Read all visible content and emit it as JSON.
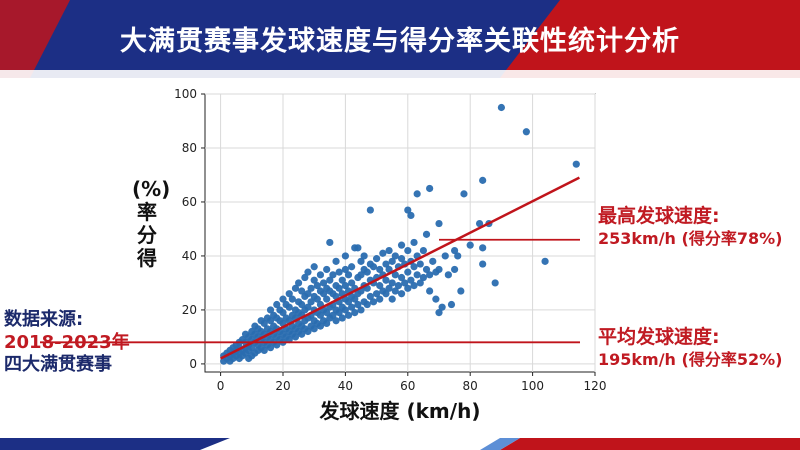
{
  "title": "大满贯赛事发球速度与得分率关联性统计分析",
  "annotations": {
    "max_label": "最高发球速度:",
    "max_value": "253km/h (得分率78%)",
    "avg_label": "平均发球速度:",
    "avg_value": "195km/h (得分率52%)",
    "source_label": "数据来源:",
    "source_years": "2018-2023年",
    "source_events": "四大满贯赛事"
  },
  "colors": {
    "banner_red": "#c0141b",
    "banner_navy": "#1c2f85",
    "point_blue": "#2a6db0",
    "line_red": "#c0141b",
    "text_red": "#c01a22",
    "text_navy": "#1c2a6b"
  },
  "chart_data": {
    "type": "scatter",
    "xlabel": "发球速度 (km/h)",
    "ylabel_chars": [
      "(%)",
      "率",
      "分",
      "得"
    ],
    "xlim": [
      -5,
      120
    ],
    "ylim": [
      -3,
      100
    ],
    "xticks": [
      0,
      20,
      40,
      60,
      80,
      100,
      120
    ],
    "yticks": [
      0,
      20,
      40,
      60,
      80,
      100
    ],
    "grid": true,
    "trend_line": {
      "x": [
        0,
        115
      ],
      "y": [
        2,
        69
      ]
    },
    "reference_lines": [
      {
        "y": 46,
        "x_from": 70,
        "x_to": 118
      },
      {
        "y": 8,
        "x_from": -5,
        "x_to": 118
      }
    ],
    "points": [
      [
        1,
        1
      ],
      [
        1,
        3
      ],
      [
        2,
        2
      ],
      [
        2,
        4
      ],
      [
        3,
        1
      ],
      [
        3,
        3
      ],
      [
        3,
        5
      ],
      [
        4,
        2
      ],
      [
        4,
        4
      ],
      [
        4,
        6
      ],
      [
        5,
        3
      ],
      [
        5,
        5
      ],
      [
        5,
        7
      ],
      [
        6,
        2
      ],
      [
        6,
        4
      ],
      [
        6,
        6
      ],
      [
        6,
        8
      ],
      [
        7,
        3
      ],
      [
        7,
        5
      ],
      [
        7,
        9
      ],
      [
        8,
        4
      ],
      [
        8,
        6
      ],
      [
        8,
        8
      ],
      [
        8,
        11
      ],
      [
        9,
        2
      ],
      [
        9,
        5
      ],
      [
        9,
        7
      ],
      [
        9,
        10
      ],
      [
        10,
        3
      ],
      [
        10,
        6
      ],
      [
        10,
        9
      ],
      [
        10,
        12
      ],
      [
        11,
        4
      ],
      [
        11,
        8
      ],
      [
        11,
        11
      ],
      [
        11,
        14
      ],
      [
        12,
        5
      ],
      [
        12,
        7
      ],
      [
        12,
        10
      ],
      [
        12,
        13
      ],
      [
        13,
        6
      ],
      [
        13,
        9
      ],
      [
        13,
        12
      ],
      [
        13,
        16
      ],
      [
        14,
        5
      ],
      [
        14,
        8
      ],
      [
        14,
        11
      ],
      [
        14,
        15
      ],
      [
        15,
        7
      ],
      [
        15,
        10
      ],
      [
        15,
        13
      ],
      [
        15,
        17
      ],
      [
        16,
        6
      ],
      [
        16,
        9
      ],
      [
        16,
        12
      ],
      [
        16,
        16
      ],
      [
        16,
        20
      ],
      [
        17,
        8
      ],
      [
        17,
        11
      ],
      [
        17,
        14
      ],
      [
        17,
        18
      ],
      [
        18,
        7
      ],
      [
        18,
        10
      ],
      [
        18,
        13
      ],
      [
        18,
        17
      ],
      [
        18,
        22
      ],
      [
        19,
        9
      ],
      [
        19,
        12
      ],
      [
        19,
        16
      ],
      [
        19,
        20
      ],
      [
        20,
        8
      ],
      [
        20,
        11
      ],
      [
        20,
        15
      ],
      [
        20,
        19
      ],
      [
        20,
        24
      ],
      [
        21,
        10
      ],
      [
        21,
        13
      ],
      [
        21,
        17
      ],
      [
        21,
        22
      ],
      [
        22,
        9
      ],
      [
        22,
        12
      ],
      [
        22,
        16
      ],
      [
        22,
        21
      ],
      [
        22,
        26
      ],
      [
        23,
        11
      ],
      [
        23,
        14
      ],
      [
        23,
        18
      ],
      [
        23,
        24
      ],
      [
        24,
        10
      ],
      [
        24,
        13
      ],
      [
        24,
        17
      ],
      [
        24,
        20
      ],
      [
        24,
        28
      ],
      [
        25,
        12
      ],
      [
        25,
        15
      ],
      [
        25,
        19
      ],
      [
        25,
        23
      ],
      [
        25,
        30
      ],
      [
        26,
        11
      ],
      [
        26,
        14
      ],
      [
        26,
        18
      ],
      [
        26,
        22
      ],
      [
        26,
        27
      ],
      [
        27,
        13
      ],
      [
        27,
        16
      ],
      [
        27,
        20
      ],
      [
        27,
        25
      ],
      [
        27,
        32
      ],
      [
        28,
        12
      ],
      [
        28,
        17
      ],
      [
        28,
        21
      ],
      [
        28,
        26
      ],
      [
        28,
        34
      ],
      [
        29,
        14
      ],
      [
        29,
        18
      ],
      [
        29,
        23
      ],
      [
        29,
        28
      ],
      [
        30,
        13
      ],
      [
        30,
        16
      ],
      [
        30,
        20
      ],
      [
        30,
        25
      ],
      [
        30,
        31
      ],
      [
        30,
        36
      ],
      [
        31,
        15
      ],
      [
        31,
        19
      ],
      [
        31,
        24
      ],
      [
        31,
        29
      ],
      [
        32,
        14
      ],
      [
        32,
        18
      ],
      [
        32,
        22
      ],
      [
        32,
        27
      ],
      [
        32,
        33
      ],
      [
        33,
        16
      ],
      [
        33,
        20
      ],
      [
        33,
        26
      ],
      [
        33,
        30
      ],
      [
        34,
        15
      ],
      [
        34,
        19
      ],
      [
        34,
        24
      ],
      [
        34,
        28
      ],
      [
        34,
        35
      ],
      [
        35,
        17
      ],
      [
        35,
        21
      ],
      [
        35,
        27
      ],
      [
        35,
        31
      ],
      [
        35,
        45
      ],
      [
        36,
        18
      ],
      [
        36,
        22
      ],
      [
        36,
        26
      ],
      [
        36,
        33
      ],
      [
        37,
        16
      ],
      [
        37,
        20
      ],
      [
        37,
        25
      ],
      [
        37,
        29
      ],
      [
        37,
        38
      ],
      [
        38,
        19
      ],
      [
        38,
        23
      ],
      [
        38,
        28
      ],
      [
        38,
        34
      ],
      [
        39,
        17
      ],
      [
        39,
        21
      ],
      [
        39,
        26
      ],
      [
        39,
        31
      ],
      [
        40,
        20
      ],
      [
        40,
        24
      ],
      [
        40,
        29
      ],
      [
        40,
        35
      ],
      [
        40,
        40
      ],
      [
        41,
        18
      ],
      [
        41,
        23
      ],
      [
        41,
        27
      ],
      [
        41,
        33
      ],
      [
        42,
        21
      ],
      [
        42,
        25
      ],
      [
        42,
        30
      ],
      [
        42,
        36
      ],
      [
        43,
        19
      ],
      [
        43,
        24
      ],
      [
        43,
        28
      ],
      [
        43,
        43
      ],
      [
        44,
        22
      ],
      [
        44,
        26
      ],
      [
        44,
        32
      ],
      [
        44,
        43
      ],
      [
        45,
        20
      ],
      [
        45,
        27
      ],
      [
        45,
        33
      ],
      [
        45,
        38
      ],
      [
        46,
        23
      ],
      [
        46,
        29
      ],
      [
        46,
        35
      ],
      [
        46,
        40
      ],
      [
        47,
        22
      ],
      [
        47,
        28
      ],
      [
        47,
        34
      ],
      [
        48,
        25
      ],
      [
        48,
        31
      ],
      [
        48,
        37
      ],
      [
        48,
        57
      ],
      [
        49,
        23
      ],
      [
        49,
        30
      ],
      [
        49,
        36
      ],
      [
        50,
        26
      ],
      [
        50,
        32
      ],
      [
        50,
        39
      ],
      [
        51,
        24
      ],
      [
        51,
        29
      ],
      [
        51,
        35
      ],
      [
        52,
        27
      ],
      [
        52,
        33
      ],
      [
        52,
        41
      ],
      [
        53,
        26
      ],
      [
        53,
        31
      ],
      [
        53,
        37
      ],
      [
        54,
        28
      ],
      [
        54,
        35
      ],
      [
        54,
        42
      ],
      [
        55,
        24
      ],
      [
        55,
        30
      ],
      [
        55,
        38
      ],
      [
        56,
        27
      ],
      [
        56,
        33
      ],
      [
        56,
        40
      ],
      [
        57,
        29
      ],
      [
        57,
        36
      ],
      [
        58,
        26
      ],
      [
        58,
        32
      ],
      [
        58,
        39
      ],
      [
        58,
        44
      ],
      [
        59,
        30
      ],
      [
        59,
        37
      ],
      [
        60,
        28
      ],
      [
        60,
        34
      ],
      [
        60,
        42
      ],
      [
        60,
        57
      ],
      [
        61,
        31
      ],
      [
        61,
        38
      ],
      [
        61,
        55
      ],
      [
        62,
        29
      ],
      [
        62,
        36
      ],
      [
        62,
        45
      ],
      [
        63,
        33
      ],
      [
        63,
        40
      ],
      [
        63,
        63
      ],
      [
        64,
        30
      ],
      [
        64,
        37
      ],
      [
        65,
        32
      ],
      [
        65,
        42
      ],
      [
        66,
        35
      ],
      [
        66,
        48
      ],
      [
        67,
        27
      ],
      [
        67,
        33
      ],
      [
        67,
        65
      ],
      [
        68,
        38
      ],
      [
        69,
        24
      ],
      [
        69,
        34
      ],
      [
        70,
        19
      ],
      [
        70,
        35
      ],
      [
        70,
        52
      ],
      [
        71,
        21
      ],
      [
        72,
        40
      ],
      [
        73,
        33
      ],
      [
        74,
        22
      ],
      [
        75,
        35
      ],
      [
        75,
        42
      ],
      [
        76,
        40
      ],
      [
        77,
        27
      ],
      [
        78,
        63
      ],
      [
        80,
        44
      ],
      [
        83,
        52
      ],
      [
        84,
        43
      ],
      [
        84,
        37
      ],
      [
        84,
        68
      ],
      [
        86,
        52
      ],
      [
        88,
        30
      ],
      [
        90,
        95
      ],
      [
        98,
        86
      ],
      [
        104,
        38
      ],
      [
        114,
        74
      ]
    ]
  }
}
